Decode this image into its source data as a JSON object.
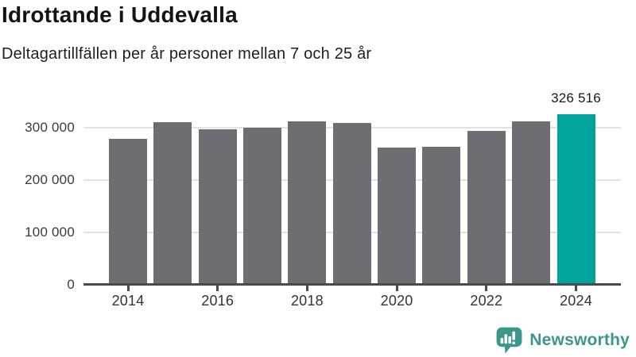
{
  "header": {
    "title": "Idrottande i Uddevalla",
    "subtitle": "Deltagartillfällen per år personer mellan 7 och 25 år"
  },
  "chart_data": {
    "type": "bar",
    "title": "Idrottande i Uddevalla",
    "subtitle": "Deltagartillfällen per år personer mellan 7 och 25 år",
    "categories": [
      2014,
      2015,
      2016,
      2017,
      2018,
      2019,
      2020,
      2021,
      2022,
      2023,
      2024
    ],
    "values": [
      279000,
      311000,
      297000,
      300000,
      312000,
      310000,
      262000,
      263000,
      294000,
      312000,
      326516
    ],
    "highlight_index": 10,
    "highlight_value_label": "326 516",
    "y_ticks": [
      0,
      100000,
      200000,
      300000
    ],
    "y_tick_labels": [
      "0",
      "100 000",
      "200 000",
      "300 000"
    ],
    "x_tick_labels": [
      "2014",
      "2016",
      "2018",
      "2020",
      "2022",
      "2024"
    ],
    "ylim": [
      0,
      340000
    ],
    "grid": "horizontal",
    "legend": "none",
    "bar_color": "#6e6d72",
    "highlight_color": "#00a49c",
    "axis_color": "#4a4a4e",
    "grid_color": "#e3e3e3"
  },
  "footer": {
    "brand": "Newsworthy",
    "brand_color": "#3d968c",
    "icon": "newsworthy-speech-bubble-chart-icon"
  }
}
